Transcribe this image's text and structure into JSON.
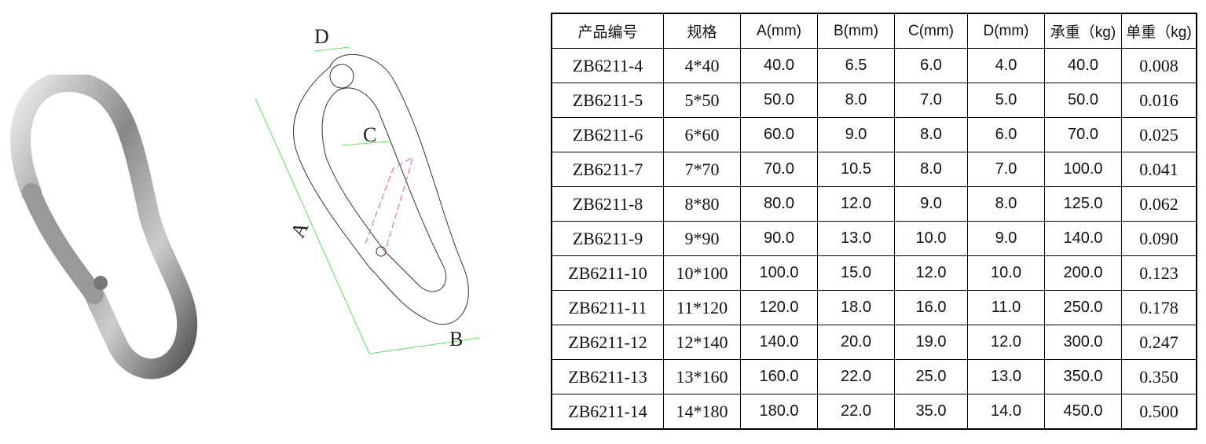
{
  "drawing": {
    "labels": {
      "a": "A",
      "b": "B",
      "c": "C",
      "d": "D"
    },
    "colors": {
      "dimension": "#66dd66",
      "gate": "#dd55dd",
      "outline": "#333333"
    }
  },
  "table": {
    "headers": [
      "产品编号",
      "规格",
      "A(mm)",
      "B(mm)",
      "C(mm)",
      "D(mm)",
      "承重（kg)",
      "单重（kg)"
    ],
    "rows": [
      [
        "ZB6211-4",
        "4*40",
        "40.0",
        "6.5",
        "6.0",
        "4.0",
        "40.0",
        "0.008"
      ],
      [
        "ZB6211-5",
        "5*50",
        "50.0",
        "8.0",
        "7.0",
        "5.0",
        "50.0",
        "0.016"
      ],
      [
        "ZB6211-6",
        "6*60",
        "60.0",
        "9.0",
        "8.0",
        "6.0",
        "70.0",
        "0.025"
      ],
      [
        "ZB6211-7",
        "7*70",
        "70.0",
        "10.5",
        "8.0",
        "7.0",
        "100.0",
        "0.041"
      ],
      [
        "ZB6211-8",
        "8*80",
        "80.0",
        "12.0",
        "9.0",
        "8.0",
        "125.0",
        "0.062"
      ],
      [
        "ZB6211-9",
        "9*90",
        "90.0",
        "13.0",
        "10.0",
        "9.0",
        "140.0",
        "0.090"
      ],
      [
        "ZB6211-10",
        "10*100",
        "100.0",
        "15.0",
        "12.0",
        "10.0",
        "200.0",
        "0.123"
      ],
      [
        "ZB6211-11",
        "11*120",
        "120.0",
        "18.0",
        "16.0",
        "11.0",
        "250.0",
        "0.178"
      ],
      [
        "ZB6211-12",
        "12*140",
        "140.0",
        "20.0",
        "19.0",
        "12.0",
        "300.0",
        "0.247"
      ],
      [
        "ZB6211-13",
        "13*160",
        "160.0",
        "22.0",
        "25.0",
        "13.0",
        "350.0",
        "0.350"
      ],
      [
        "ZB6211-14",
        "14*180",
        "180.0",
        "22.0",
        "35.0",
        "14.0",
        "450.0",
        "0.500"
      ]
    ]
  }
}
